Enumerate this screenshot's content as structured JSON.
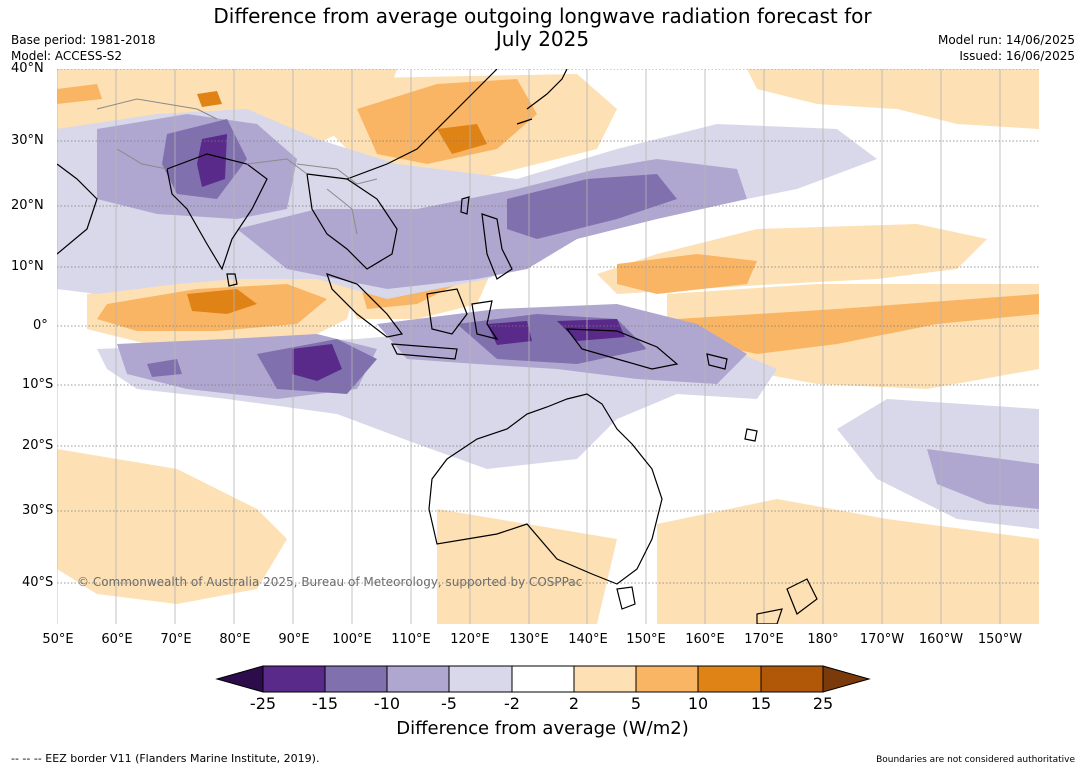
{
  "title_line1": "Difference from average outgoing longwave radiation forecast for",
  "title_line2": "July 2025",
  "header_left": {
    "base_period": "Base period: 1981-2018",
    "model": "Model: ACCESS-S2"
  },
  "header_right": {
    "model_run": "Model run: 14/06/2025",
    "issued": "Issued: 16/06/2025"
  },
  "lat_labels": [
    "40°N",
    "30°N",
    "20°N",
    "10°N",
    "0°",
    "10°S",
    "20°S",
    "30°S",
    "40°S"
  ],
  "lon_labels": [
    "50°E",
    "60°E",
    "70°E",
    "80°E",
    "90°E",
    "100°E",
    "110°E",
    "120°E",
    "130°E",
    "140°E",
    "150°E",
    "160°E",
    "170°E",
    "180°",
    "170°W",
    "160°W",
    "150°W"
  ],
  "copyright": "© Commonwealth of Australia 2025, Bureau of Meteorology, supported by COSPPac",
  "colorbar": {
    "ticks": [
      "-25",
      "-15",
      "-10",
      "-5",
      "-2",
      "2",
      "5",
      "10",
      "15",
      "25"
    ],
    "colors": [
      "#2d0c4b",
      "#5a2a8a",
      "#8070ad",
      "#b0a7d0",
      "#d8d8ea",
      "#ffffff",
      "#fde0b4",
      "#f9b563",
      "#e08316",
      "#b15808",
      "#7a3a0c"
    ],
    "title": "Difference from average (W/m2)"
  },
  "footer_left": "--  --  -- EEZ border V11 (Flanders Marine Institute, 2019).",
  "footer_right": "Boundaries are not considered authoritative"
}
